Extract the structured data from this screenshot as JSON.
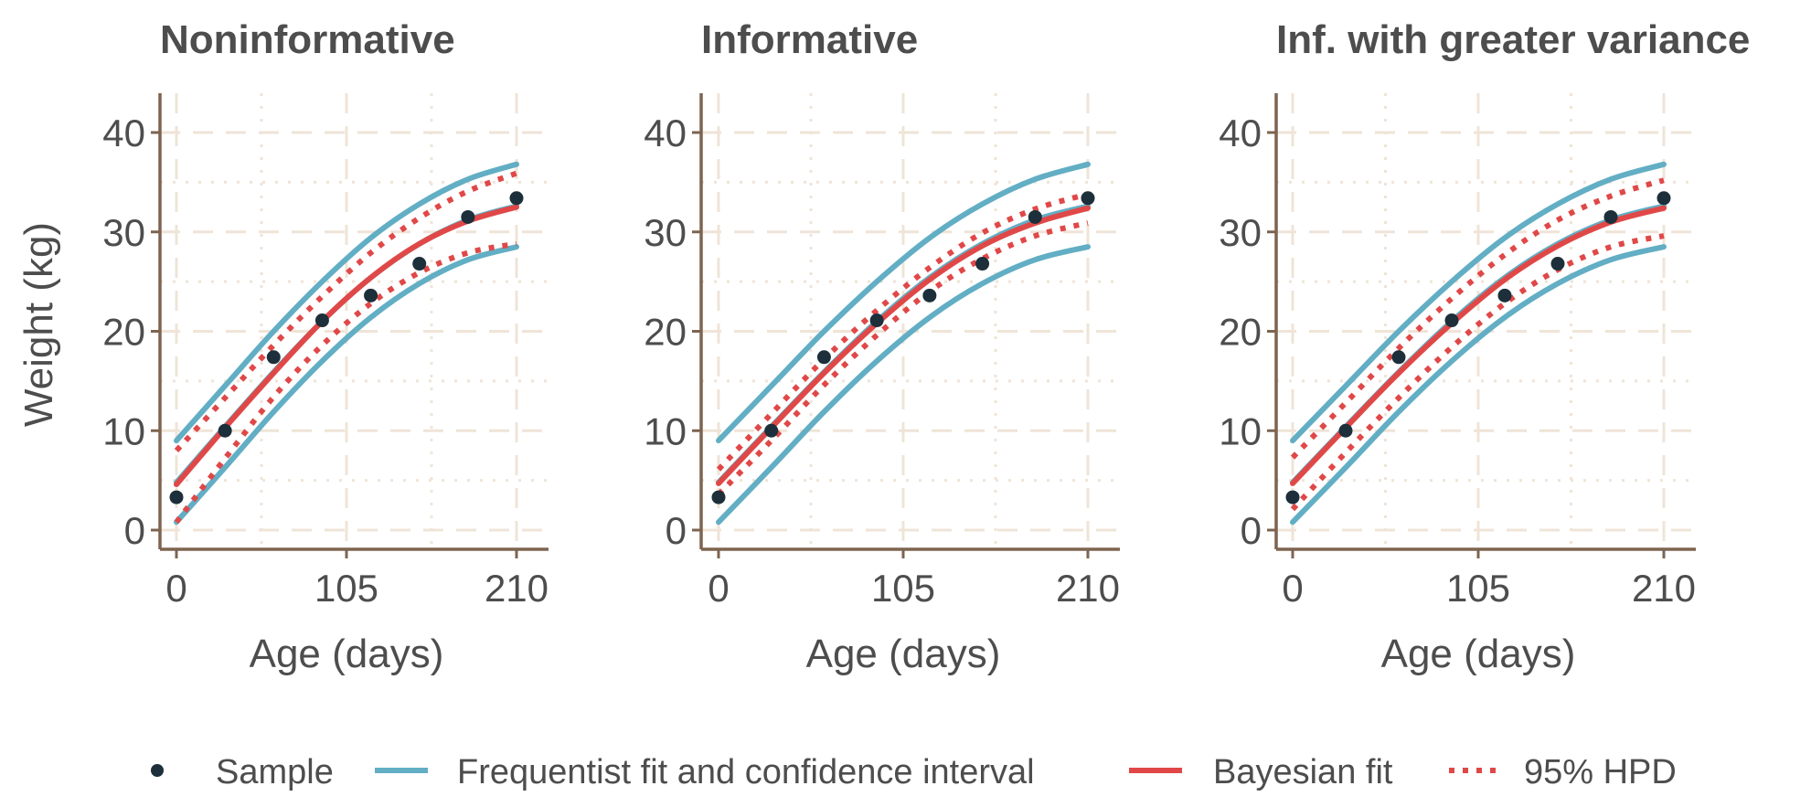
{
  "chart_data": {
    "type": "line",
    "ylabel": "Weight (kg)",
    "xlabel": "Age (days)",
    "xlim": [
      0,
      210
    ],
    "ylim": [
      0,
      40
    ],
    "x_ticks": [
      "0",
      "105",
      "210"
    ],
    "y_ticks": [
      "0",
      "10",
      "20",
      "30",
      "40"
    ],
    "x_tick_values": [
      0,
      105,
      210
    ],
    "y_tick_values": [
      0,
      10,
      20,
      30,
      40
    ],
    "grid": true,
    "legend_position": "bottom",
    "legend": [
      {
        "key": "sample",
        "label": "Sample",
        "kind": "point"
      },
      {
        "key": "freq",
        "label": "Frequentist fit and confidence interval",
        "kind": "line"
      },
      {
        "key": "bayes",
        "label": "Bayesian fit",
        "kind": "line"
      },
      {
        "key": "hpd",
        "label": "95% HPD",
        "kind": "dotted"
      }
    ],
    "colors": {
      "sample": "#1c2f3a",
      "freq": "#62aec4",
      "bayes": "#e04848",
      "hpd": "#e04848",
      "axis": "#7d6450",
      "grid": "#efe4d7",
      "text": "#4d4d4d"
    },
    "sample": {
      "x": [
        0,
        30,
        60,
        90,
        120,
        150,
        180,
        210
      ],
      "y": [
        3.3,
        10.0,
        17.4,
        21.1,
        23.6,
        26.8,
        31.5,
        33.4
      ]
    },
    "frequentist": {
      "x": [
        0,
        30,
        60,
        90,
        120,
        150,
        180,
        210
      ],
      "fit": [
        4.8,
        10.4,
        15.9,
        21.0,
        25.4,
        28.8,
        31.2,
        32.6
      ],
      "lower": [
        0.8,
        6.3,
        11.9,
        17.0,
        21.4,
        24.8,
        27.2,
        28.5
      ],
      "upper": [
        9.0,
        14.5,
        20.0,
        25.0,
        29.4,
        32.8,
        35.3,
        36.8
      ]
    },
    "panels": [
      {
        "title": "Noninformative",
        "bayes_fit": [
          4.6,
          10.3,
          15.8,
          21.0,
          25.4,
          28.8,
          31.1,
          32.5
        ],
        "hpd_lower": [
          0.8,
          7.2,
          13.4,
          18.6,
          22.8,
          25.9,
          27.9,
          28.8
        ],
        "hpd_upper": [
          8.0,
          13.3,
          18.6,
          23.5,
          27.9,
          31.4,
          34.1,
          35.9
        ]
      },
      {
        "title": "Informative",
        "bayes_fit": [
          4.7,
          10.3,
          15.8,
          20.8,
          25.2,
          28.6,
          30.9,
          32.4
        ],
        "hpd_lower": [
          3.6,
          9.0,
          14.6,
          19.6,
          24.0,
          27.3,
          29.6,
          30.9
        ],
        "hpd_upper": [
          6.1,
          11.7,
          17.2,
          22.1,
          26.4,
          29.9,
          32.3,
          33.8
        ]
      },
      {
        "title": "Inf. with greater variance",
        "bayes_fit": [
          4.7,
          10.3,
          15.8,
          20.8,
          25.2,
          28.6,
          31.0,
          32.4
        ],
        "hpd_lower": [
          2.1,
          7.8,
          13.3,
          18.4,
          22.8,
          26.2,
          28.5,
          29.6
        ],
        "hpd_upper": [
          7.3,
          12.8,
          18.3,
          23.3,
          27.7,
          31.2,
          33.6,
          35.2
        ]
      }
    ]
  }
}
